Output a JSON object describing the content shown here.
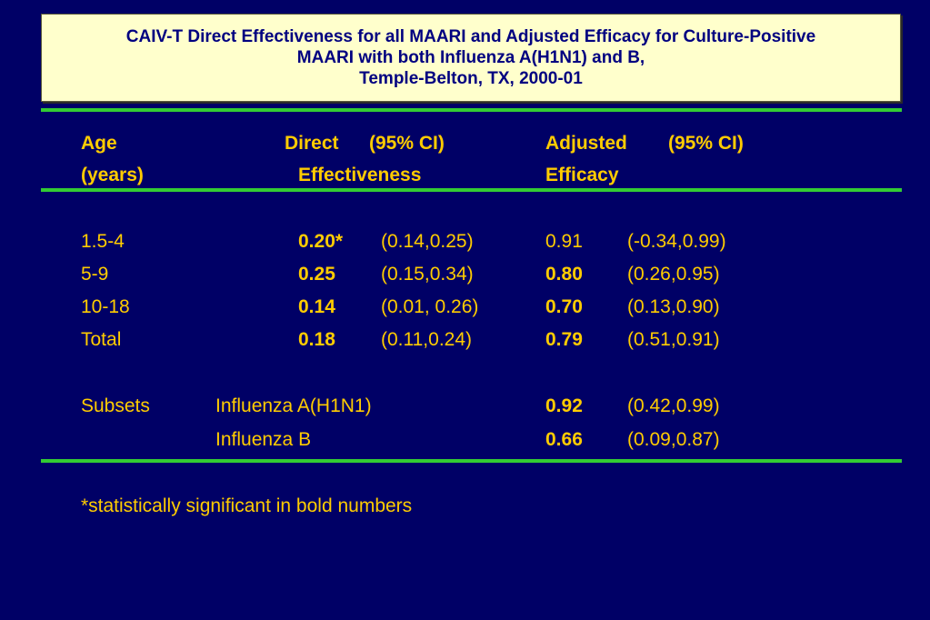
{
  "title": {
    "line1": "CAIV-T Direct Effectiveness for all MAARI and Adjusted Efficacy for Culture-Positive",
    "line2": "MAARI with both Influenza A(H1N1) and B,",
    "line3": "Temple-Belton, TX, 2000-01"
  },
  "header": {
    "age": "Age",
    "years": "(years)",
    "direct": "Direct",
    "direct_ci": "(95% CI)",
    "effectiveness": "Effectiveness",
    "adjusted": "Adjusted",
    "adjusted_ci": "(95% CI)",
    "efficacy": "Efficacy"
  },
  "rows": [
    {
      "age": "1.5-4",
      "direct": "0.20*",
      "direct_ci": "(0.14,0.25)",
      "adjusted": "0.91",
      "adjusted_ci": "(-0.34,0.99)"
    },
    {
      "age": "5-9",
      "direct": "0.25",
      "direct_ci": "(0.15,0.34)",
      "adjusted": "0.80",
      "adjusted_ci": "(0.26,0.95)"
    },
    {
      "age": "10-18",
      "direct": "0.14",
      "direct_ci": "(0.01, 0.26)",
      "adjusted": "0.70",
      "adjusted_ci": "(0.13,0.90)"
    },
    {
      "age": "Total",
      "direct": "0.18",
      "direct_ci": "(0.11,0.24)",
      "adjusted": "0.79",
      "adjusted_ci": "(0.51,0.91)"
    }
  ],
  "subsets": {
    "label": "Subsets",
    "items": [
      {
        "name": "Influenza A(H1N1)",
        "adjusted": "0.92",
        "adjusted_ci": "(0.42,0.99)"
      },
      {
        "name": "Influenza B",
        "adjusted": "0.66",
        "adjusted_ci": "(0.09,0.87)"
      }
    ]
  },
  "footnote": "*statistically significant in bold numbers",
  "colors": {
    "background": "#000066",
    "text": "#ffcc00",
    "rule": "#33cc33",
    "title_bg": "#ffffcc",
    "title_text": "#000080"
  }
}
